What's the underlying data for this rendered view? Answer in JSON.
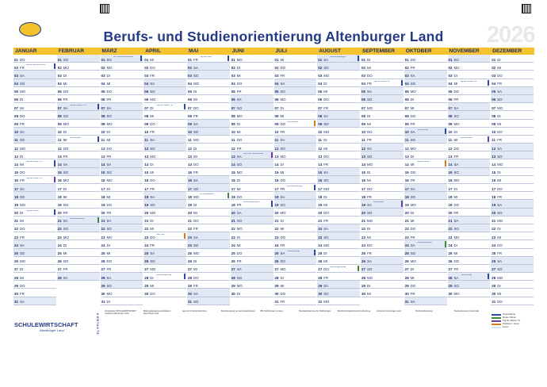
{
  "header": {
    "title": "Berufs- und Studienorientierung Altenburger Land",
    "year": "2026"
  },
  "months": [
    "JANUAR",
    "FEBRUAR",
    "MÄRZ",
    "APRIL",
    "MAI",
    "JUNI",
    "JULI",
    "AUGUST",
    "SEPTEMBER",
    "OKTOBER",
    "NOVEMBER",
    "DEZEMBER"
  ],
  "weekday_abbrev": [
    "MO",
    "DI",
    "MI",
    "DO",
    "FR",
    "SA",
    "SO"
  ],
  "first_weekday": [
    3,
    6,
    6,
    2,
    4,
    0,
    2,
    5,
    1,
    3,
    6,
    1
  ],
  "days_in_month": [
    31,
    28,
    31,
    30,
    31,
    30,
    31,
    31,
    30,
    31,
    30,
    31
  ],
  "events": [
    {
      "m": 1,
      "d": 2,
      "text": "Messe Bildung & Beruf",
      "color": "#2a4aa8"
    },
    {
      "m": 1,
      "d": 14,
      "text": "Tag der offenen Tür",
      "color": "#2a4aa8"
    },
    {
      "m": 1,
      "d": 16,
      "text": "Tag der offenen Tür",
      "color": "#6a3ea0"
    },
    {
      "m": 1,
      "d": 20,
      "text": "Tag der Berufe",
      "color": "#2a4aa8"
    },
    {
      "m": 2,
      "d": 7,
      "text": "Tag der offenen Tür",
      "color": "#2a4aa8"
    },
    {
      "m": 2,
      "d": 11,
      "text": "Berufemesse",
      "color": "#2a4aa8"
    },
    {
      "m": 2,
      "d": 21,
      "text": "Fachkräftemesse",
      "color": "#3d8a3a"
    },
    {
      "m": 3,
      "d": 1,
      "text": "Job- und Karrieremesse",
      "color": "#2a4aa8"
    },
    {
      "m": 4,
      "d": 7,
      "text": "Tag der offenen Tür",
      "color": "#2a4aa8"
    },
    {
      "m": 4,
      "d": 23,
      "text": "Girls' Day",
      "color": "#d07a1a"
    },
    {
      "m": 4,
      "d": 28,
      "text": "Ausbildungsbörse",
      "color": "#2a4aa8"
    },
    {
      "m": 5,
      "d": 1,
      "text": "Tag der Arbeit",
      "color": "#2a4aa8"
    },
    {
      "m": 5,
      "d": 18,
      "text": "Schülerpraktikum",
      "color": "#3d8a3a"
    },
    {
      "m": 6,
      "d": 13,
      "text": "Nacht der Wissenschaft",
      "color": "#6a3ea0"
    },
    {
      "m": 6,
      "d": 19,
      "text": "Ausbildungsmesse",
      "color": "#2a4aa8"
    },
    {
      "m": 7,
      "d": 9,
      "text": "Sommercamp",
      "color": "#d07a1a"
    },
    {
      "m": 7,
      "d": 17,
      "text": "Berufsorientierung",
      "color": "#2a4aa8"
    },
    {
      "m": 7,
      "d": 25,
      "text": "Ausbildungstag",
      "color": "#2a4aa8"
    },
    {
      "m": 8,
      "d": 1,
      "text": "Ausbildungsbeginn",
      "color": "#2a4aa8"
    },
    {
      "m": 8,
      "d": 27,
      "text": "Ausbildungsmesse",
      "color": "#3d8a3a"
    },
    {
      "m": 9,
      "d": 4,
      "text": "Tag der offenen Tür",
      "color": "#2a4aa8"
    },
    {
      "m": 9,
      "d": 19,
      "text": "Berufemarkt",
      "color": "#6a3ea0"
    },
    {
      "m": 10,
      "d": 10,
      "text": "Herbstmesse",
      "color": "#2a4aa8"
    },
    {
      "m": 10,
      "d": 14,
      "text": "Tag der Berufe",
      "color": "#d07a1a"
    },
    {
      "m": 10,
      "d": 24,
      "text": "Ausbildungsbörse",
      "color": "#3d8a3a"
    },
    {
      "m": 11,
      "d": 4,
      "text": "Tag der offenen Tür",
      "color": "#2a4aa8"
    },
    {
      "m": 11,
      "d": 11,
      "text": "Studienmesse",
      "color": "#6a3ea0"
    },
    {
      "m": 11,
      "d": 28,
      "text": "Hochschultag",
      "color": "#2a4aa8"
    }
  ],
  "footer": {
    "brand": "SCHULEWIRTSCHAFT",
    "brand_sub": "Altenburger Land",
    "kontakte": "KONTAKTE",
    "info_blocks": [
      "Arbeitskreis SCHULEWIRTSCHAFT Landkreis Altenburger Land",
      "Bildungsberatung Landratsamt Altenburger Land",
      "Agentur für Arbeit Altenburg",
      "Berufsberatung vor dem Erwerbsleben",
      "IHK Ostthüringen zu Gera",
      "Handwerkskammer für Ostthüringen",
      "Berufsinformationszentrum Altenburg",
      "Jobcenter Altenburger Land",
      "Hochschulberatung",
      "Studienberatung Universität"
    ]
  },
  "legend": [
    {
      "label": "Veranstaltung",
      "color": "#2a4aa8"
    },
    {
      "label": "Messe / Börse",
      "color": "#3d8a3a"
    },
    {
      "label": "Tag der offenen Tür",
      "color": "#6a3ea0"
    },
    {
      "label": "Praktikum / Camp",
      "color": "#d07a1a"
    },
    {
      "label": "Ferien",
      "color": "#d7dfee"
    }
  ],
  "colors": {
    "accent": "#f5c330",
    "brand": "#243a86",
    "weekend": "#e3e9f4"
  }
}
